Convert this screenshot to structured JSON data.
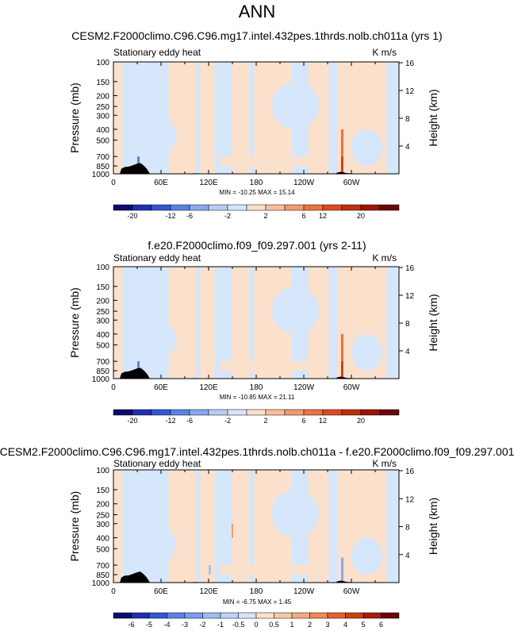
{
  "page_title": "ANN",
  "colors": {
    "warm": "#fbe1cc",
    "cool": "#d6e6fb",
    "terrain": "#000000"
  },
  "chart_data": [
    {
      "type": "heatmap",
      "title": "CESM2.F2000climo.C96.C96.mg17.intel.432pes.1thrds.nolb.ch011a (yrs 1)",
      "subtitle_left": "Stationary eddy heat",
      "subtitle_right": "K m/s",
      "ylabel": "Pressure (mb)",
      "ylabel_right": "Height (km)",
      "pressure_ticks": [
        "100",
        "150",
        "200",
        "250",
        "300",
        "400",
        "500",
        "700",
        "850",
        "1000"
      ],
      "height_ticks": [
        "16",
        "12",
        "8",
        "4"
      ],
      "lon_ticks": [
        "0",
        "60E",
        "120E",
        "180",
        "120W",
        "60W"
      ],
      "stats": "MIN = -10.25  MAX =  15.14",
      "colorbar_labels": [
        "-20",
        "-12",
        "-6",
        "-2",
        "2",
        "6",
        "12",
        "20"
      ],
      "colorbar_colors": [
        "#0d0a6e",
        "#1f2fb0",
        "#3356d6",
        "#5a82e6",
        "#88a8ef",
        "#b6cdf6",
        "#d6e6fb",
        "#fbe1cc",
        "#f7bf9e",
        "#f29a6e",
        "#ec7242",
        "#dd4a20",
        "#c22e10",
        "#9d1306",
        "#6c0503"
      ]
    },
    {
      "type": "heatmap",
      "title": "f.e20.F2000climo.f09_f09.297.001 (yrs 2-11)",
      "subtitle_left": "Stationary eddy heat",
      "subtitle_right": "K m/s",
      "ylabel": "Pressure (mb)",
      "ylabel_right": "Height (km)",
      "pressure_ticks": [
        "100",
        "150",
        "200",
        "250",
        "300",
        "400",
        "500",
        "700",
        "850",
        "1000"
      ],
      "height_ticks": [
        "16",
        "12",
        "8",
        "4"
      ],
      "lon_ticks": [
        "0",
        "60E",
        "120E",
        "180",
        "120W",
        "60W"
      ],
      "stats": "MIN = -10.85  MAX =  21.11",
      "colorbar_labels": [
        "-20",
        "-12",
        "-6",
        "-2",
        "2",
        "6",
        "12",
        "20"
      ],
      "colorbar_colors": [
        "#0d0a6e",
        "#1f2fb0",
        "#3356d6",
        "#5a82e6",
        "#88a8ef",
        "#b6cdf6",
        "#d6e6fb",
        "#fbe1cc",
        "#f7bf9e",
        "#f29a6e",
        "#ec7242",
        "#dd4a20",
        "#c22e10",
        "#9d1306",
        "#6c0503"
      ]
    },
    {
      "type": "heatmap",
      "title": "CESM2.F2000climo.C96.C96.mg17.intel.432pes.1thrds.nolb.ch011a - f.e20.F2000climo.f09_f09.297.001",
      "subtitle_left": "Stationary eddy heat",
      "subtitle_right": "K m/s",
      "ylabel": "Pressure (mb)",
      "ylabel_right": "Height (km)",
      "pressure_ticks": [
        "100",
        "150",
        "200",
        "250",
        "300",
        "400",
        "500",
        "700",
        "850",
        "1000"
      ],
      "height_ticks": [
        "16",
        "12",
        "8",
        "4"
      ],
      "lon_ticks": [
        "0",
        "60E",
        "120E",
        "180",
        "120W",
        "60W"
      ],
      "stats": "MIN =  -6.75  MAX =   1.45",
      "colorbar_labels": [
        "-6",
        "-5",
        "-4",
        "-3",
        "-2",
        "-1",
        "-0.5",
        "0",
        "0.5",
        "1",
        "2",
        "3",
        "4",
        "5",
        "6"
      ],
      "colorbar_colors": [
        "#0d0a6e",
        "#1f2fb0",
        "#3356d6",
        "#5a82e6",
        "#7b9ded",
        "#9fbbf3",
        "#bcd2f7",
        "#d6e6fb",
        "#fbe1cc",
        "#f7c7a7",
        "#f4aa7f",
        "#ee8858",
        "#e2622f",
        "#cc3f17",
        "#a81c08",
        "#6c0503"
      ]
    }
  ]
}
